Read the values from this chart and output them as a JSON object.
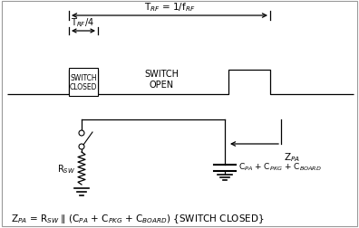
{
  "bg_color": "#ffffff",
  "line_color": "#000000",
  "formula_text": "Z$_{PA}$ = R$_{SW}$ ∥ (C$_{PA}$ + C$_{PKG}$ + C$_{BOARD}$) {SWITCH CLOSED}",
  "trf_label": "T$_{RF}$ = 1/f$_{RF}$",
  "trf4_label": "T$_{RF}$/4",
  "switch_closed_label": "SWITCH\nCLOSED",
  "switch_open_label": "SWITCH\nOPEN",
  "zpa_label": "Z$_{PA}$",
  "rsw_label": "R$_{SW}$",
  "cap_label": "C$_{PA}$ + C$_{PKG}$ + C$_{BOARD}$",
  "figsize": [
    3.96,
    2.53
  ],
  "dpi": 100
}
